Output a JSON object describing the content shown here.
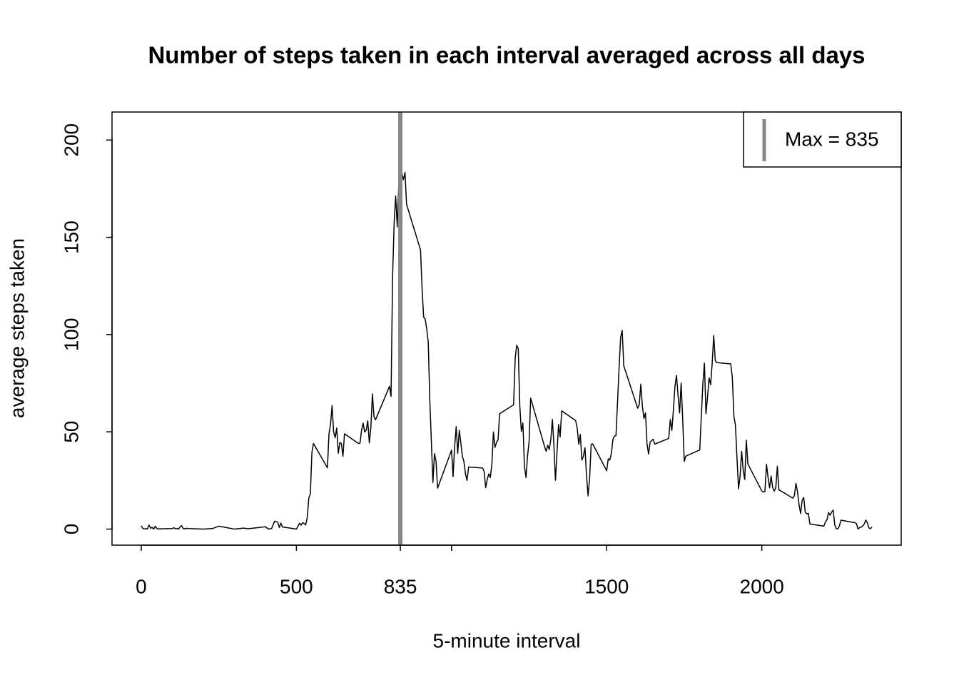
{
  "chart_data": {
    "type": "line",
    "title": "Number of steps taken in each interval averaged across all days",
    "x_label": "5-minute interval",
    "y_label": "average steps taken",
    "x": [
      0,
      5,
      10,
      15,
      20,
      25,
      30,
      35,
      40,
      45,
      50,
      55,
      100,
      105,
      110,
      115,
      120,
      125,
      130,
      135,
      140,
      145,
      150,
      200,
      230,
      250,
      300,
      330,
      345,
      400,
      410,
      420,
      430,
      440,
      445,
      450,
      455,
      500,
      510,
      515,
      520,
      525,
      530,
      535,
      540,
      545,
      550,
      555,
      600,
      605,
      610,
      615,
      620,
      625,
      630,
      635,
      640,
      645,
      650,
      655,
      700,
      705,
      710,
      715,
      720,
      725,
      730,
      735,
      740,
      745,
      750,
      755,
      800,
      805,
      810,
      815,
      820,
      825,
      830,
      835,
      840,
      845,
      850,
      855,
      900,
      905,
      910,
      915,
      920,
      925,
      930,
      935,
      940,
      945,
      950,
      955,
      1000,
      1005,
      1010,
      1015,
      1020,
      1025,
      1030,
      1035,
      1040,
      1045,
      1050,
      1055,
      1100,
      1105,
      1110,
      1115,
      1120,
      1125,
      1130,
      1135,
      1140,
      1145,
      1150,
      1155,
      1200,
      1205,
      1210,
      1215,
      1220,
      1225,
      1230,
      1235,
      1240,
      1245,
      1250,
      1255,
      1300,
      1305,
      1310,
      1315,
      1320,
      1325,
      1330,
      1335,
      1340,
      1345,
      1350,
      1355,
      1400,
      1405,
      1410,
      1415,
      1420,
      1425,
      1430,
      1435,
      1440,
      1445,
      1450,
      1455,
      1500,
      1505,
      1510,
      1515,
      1520,
      1525,
      1530,
      1535,
      1540,
      1545,
      1550,
      1555,
      1600,
      1605,
      1610,
      1615,
      1620,
      1625,
      1630,
      1635,
      1640,
      1645,
      1650,
      1655,
      1700,
      1705,
      1710,
      1715,
      1720,
      1725,
      1730,
      1735,
      1740,
      1745,
      1750,
      1755,
      1800,
      1805,
      1810,
      1815,
      1820,
      1825,
      1830,
      1835,
      1840,
      1845,
      1850,
      1855,
      1900,
      1905,
      1910,
      1915,
      1920,
      1925,
      1930,
      1935,
      1940,
      1945,
      1950,
      1955,
      2000,
      2005,
      2010,
      2015,
      2020,
      2025,
      2030,
      2035,
      2040,
      2045,
      2050,
      2055,
      2100,
      2105,
      2110,
      2115,
      2120,
      2125,
      2130,
      2135,
      2140,
      2145,
      2150,
      2155,
      2200,
      2205,
      2210,
      2215,
      2220,
      2225,
      2230,
      2235,
      2240,
      2245,
      2250,
      2255,
      2300,
      2305,
      2310,
      2315,
      2320,
      2325,
      2330,
      2335,
      2340,
      2345,
      2350,
      2355
    ],
    "values": [
      1.7,
      0.3,
      0.1,
      0.2,
      0.1,
      2.1,
      0.5,
      0.9,
      0,
      1.5,
      0.3,
      0.1,
      0.3,
      0.7,
      0.2,
      0.3,
      0,
      1.1,
      1.8,
      0.2,
      0.2,
      0.4,
      0.3,
      0,
      0.3,
      1.5,
      0,
      0.5,
      0.2,
      1.2,
      0,
      0.3,
      4.1,
      3.5,
      0.8,
      3.1,
      1.1,
      0,
      3,
      2,
      3.3,
      2.9,
      2.1,
      6,
      16,
      18,
      39.5,
      44,
      31.5,
      49,
      53.8,
      63.5,
      50,
      47,
      52,
      39,
      44.5,
      44,
      37.4,
      49,
      44,
      44.2,
      50.8,
      54.5,
      49.9,
      50.9,
      55.7,
      44.3,
      52.3,
      69.5,
      57.8,
      56.2,
      73.4,
      68.2,
      129.4,
      157.5,
      171.2,
      155.4,
      177.3,
      196,
      183,
      179.6,
      183.4,
      167,
      143.5,
      124,
      109,
      108,
      103,
      96,
      66,
      45,
      24,
      38.8,
      34.9,
      21,
      40.6,
      27,
      42.4,
      52.7,
      38.9,
      50.8,
      44.3,
      37.4,
      34.7,
      28.3,
      25,
      31.9,
      31.4,
      29.7,
      21.3,
      25.5,
      28.4,
      26.5,
      33.4,
      49.9,
      42,
      44.6,
      46,
      59.3,
      63.9,
      87.6,
      94.5,
      92.8,
      63.4,
      50.2,
      54.5,
      32.4,
      26.5,
      37.7,
      45.1,
      67.3,
      42.3,
      40,
      43.1,
      40.9,
      46.2,
      56.4,
      42.8,
      25.1,
      39.9,
      53.8,
      47.4,
      60.8,
      55.8,
      51.9,
      43.6,
      48.7,
      35.5,
      37.5,
      41.8,
      27.5,
      17.1,
      26.1,
      43.6,
      43.8,
      30,
      36.1,
      35.5,
      38.8,
      46,
      47.8,
      48.1,
      65.3,
      82.9,
      98.7,
      102.1,
      84,
      62.1,
      64.1,
      74.5,
      63.2,
      56.9,
      59.8,
      43.9,
      38.6,
      44.7,
      45.5,
      46.2,
      43.7,
      46.6,
      56.3,
      50.7,
      61.2,
      73.4,
      79,
      68.9,
      59.7,
      75.1,
      56.5,
      34.8,
      37.5,
      40.7,
      58,
      74.7,
      85.3,
      59.3,
      67.8,
      77.7,
      74.2,
      85.3,
      99.5,
      86.6,
      85.6,
      84.9,
      77.8,
      58,
      53.4,
      36.3,
      20.7,
      27.4,
      40,
      30.2,
      25.5,
      45.7,
      33.5,
      19.6,
      19,
      19.3,
      33.3,
      26.8,
      21.2,
      27.3,
      21.3,
      19.5,
      21.3,
      32.3,
      20.2,
      15.9,
      17.2,
      23.5,
      19.2,
      12.5,
      8,
      14.7,
      16.3,
      8.7,
      7.8,
      8.1,
      2.6,
      1.5,
      3.7,
      4.8,
      8.5,
      7.1,
      8.7,
      9.8,
      2.2,
      0.3,
      0.1,
      1.6,
      4.6,
      3.3,
      2.8,
      0,
      0.8,
      1,
      1.6,
      2.6,
      4.7,
      3.3,
      0.6,
      0.2,
      1.1
    ],
    "color": "#000000",
    "reference_line": {
      "x": 835,
      "label": "Max = 835",
      "color": "#888888"
    },
    "legend": "topright",
    "xlim": [
      -94.2,
      2449.2
    ],
    "ylim": [
      -8.25,
      214.4
    ],
    "xticks": [
      0,
      500,
      835,
      {
        "value": 1000,
        "label": null
      },
      1500,
      2000
    ],
    "yticks": [
      0,
      50,
      100,
      150,
      200
    ]
  }
}
